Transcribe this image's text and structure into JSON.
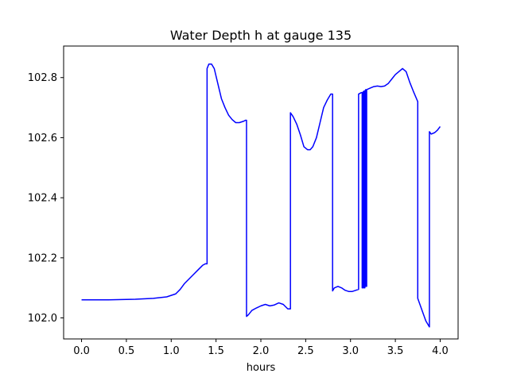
{
  "chart_data": {
    "type": "line",
    "title": "Water Depth h at gauge 135",
    "xlabel": "hours",
    "ylabel": "",
    "xlim": [
      -0.2,
      4.2
    ],
    "ylim": [
      101.93,
      102.905
    ],
    "xticks": [
      0.0,
      0.5,
      1.0,
      1.5,
      2.0,
      2.5,
      3.0,
      3.5,
      4.0
    ],
    "xtick_labels": [
      "0.0",
      "0.5",
      "1.0",
      "1.5",
      "2.0",
      "2.5",
      "3.0",
      "3.5",
      "4.0"
    ],
    "yticks": [
      102.0,
      102.2,
      102.4,
      102.6,
      102.8
    ],
    "ytick_labels": [
      "102.0",
      "102.2",
      "102.4",
      "102.6",
      "102.8"
    ],
    "grid": false,
    "series": [
      {
        "name": "",
        "color": "#0000ff",
        "x": [
          0.0,
          0.3,
          0.6,
          0.8,
          0.95,
          1.05,
          1.1,
          1.15,
          1.25,
          1.3,
          1.35,
          1.38,
          1.4,
          1.4,
          1.42,
          1.45,
          1.48,
          1.52,
          1.56,
          1.6,
          1.64,
          1.68,
          1.72,
          1.76,
          1.79,
          1.81,
          1.83,
          1.84,
          1.84,
          1.86,
          1.9,
          1.95,
          2.0,
          2.05,
          2.1,
          2.15,
          2.2,
          2.25,
          2.3,
          2.33,
          2.33,
          2.36,
          2.4,
          2.44,
          2.48,
          2.52,
          2.55,
          2.58,
          2.62,
          2.66,
          2.7,
          2.74,
          2.78,
          2.8,
          2.8,
          2.82,
          2.86,
          2.9,
          2.94,
          2.98,
          3.02,
          3.06,
          3.09,
          3.09,
          3.12,
          3.13,
          3.13,
          3.14,
          3.14,
          3.15,
          3.15,
          3.16,
          3.16,
          3.17,
          3.17,
          3.18,
          3.18,
          3.22,
          3.26,
          3.3,
          3.34,
          3.38,
          3.42,
          3.46,
          3.5,
          3.54,
          3.58,
          3.62,
          3.66,
          3.7,
          3.75,
          3.75,
          3.78,
          3.81,
          3.84,
          3.88,
          3.88,
          3.9,
          3.94,
          3.97,
          4.0
        ],
        "y": [
          102.06,
          102.06,
          102.062,
          102.065,
          102.07,
          102.08,
          102.095,
          102.115,
          102.145,
          102.16,
          102.175,
          102.18,
          102.18,
          102.83,
          102.845,
          102.845,
          102.83,
          102.78,
          102.73,
          102.7,
          102.675,
          102.66,
          102.65,
          102.65,
          102.653,
          102.655,
          102.658,
          102.658,
          102.005,
          102.01,
          102.025,
          102.033,
          102.04,
          102.045,
          102.04,
          102.043,
          102.05,
          102.045,
          102.03,
          102.03,
          102.683,
          102.67,
          102.645,
          102.61,
          102.57,
          102.56,
          102.56,
          102.57,
          102.6,
          102.65,
          102.7,
          102.725,
          102.745,
          102.745,
          102.09,
          102.1,
          102.105,
          102.1,
          102.092,
          102.088,
          102.088,
          102.092,
          102.095,
          102.745,
          102.75,
          102.75,
          102.1,
          102.1,
          102.752,
          102.755,
          102.1,
          102.1,
          102.755,
          102.76,
          102.105,
          102.105,
          102.76,
          102.765,
          102.77,
          102.772,
          102.77,
          102.772,
          102.78,
          102.795,
          102.81,
          102.82,
          102.83,
          102.82,
          102.785,
          102.755,
          102.72,
          102.065,
          102.04,
          102.015,
          101.99,
          101.97,
          102.62,
          102.612,
          102.617,
          102.625,
          102.637
        ]
      }
    ]
  }
}
